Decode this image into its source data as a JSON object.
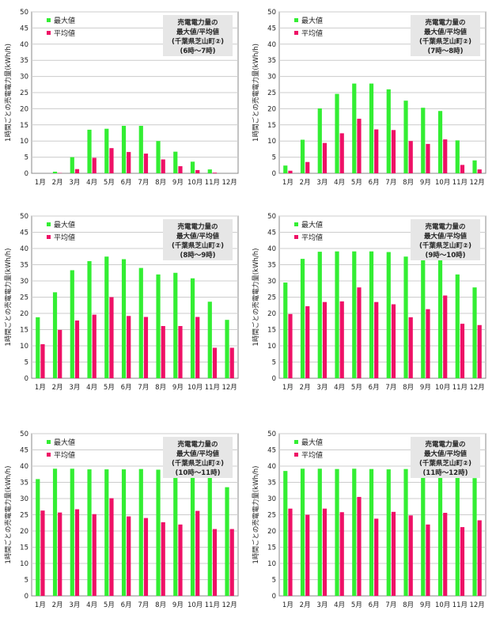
{
  "colors": {
    "max": "#33ee33",
    "avg": "#ee1166",
    "grid": "#cccccc",
    "axis": "#999999",
    "textbox_bg": "#e6e6e6"
  },
  "chart_data": [
    {
      "type": "bar",
      "categories": [
        "1月",
        "2月",
        "3月",
        "4月",
        "5月",
        "6月",
        "7月",
        "8月",
        "9月",
        "10月",
        "11月",
        "12月"
      ],
      "series": [
        {
          "name": "最大値",
          "values": [
            0,
            0.5,
            5,
            13.5,
            13.8,
            14.7,
            14.7,
            10,
            6.7,
            3.6,
            1.2,
            0
          ]
        },
        {
          "name": "平均値",
          "values": [
            0,
            0.1,
            1.3,
            4.8,
            7.8,
            6.6,
            6.1,
            4.3,
            2.2,
            1.0,
            0.2,
            0
          ]
        }
      ],
      "title_lines": [
        "売電電力量の",
        "最大値/平均値",
        "(千葉県芝山町②)",
        "(6時～7時)"
      ],
      "ylabel": "1時間ごとの売電電力量(kWh/h)",
      "ylim": [
        0,
        50
      ],
      "yticks": [
        0,
        5,
        10,
        15,
        20,
        25,
        30,
        35,
        40,
        45,
        50
      ],
      "grid": true,
      "legend": "top-left"
    },
    {
      "type": "bar",
      "categories": [
        "1月",
        "2月",
        "3月",
        "4月",
        "5月",
        "6月",
        "7月",
        "8月",
        "9月",
        "10月",
        "11月",
        "12月"
      ],
      "series": [
        {
          "name": "最大値",
          "values": [
            2.4,
            10.4,
            20.1,
            24.6,
            27.8,
            27.8,
            26,
            22.5,
            20.3,
            19.3,
            10.2,
            4
          ]
        },
        {
          "name": "平均値",
          "values": [
            0.8,
            3.5,
            9.4,
            12.4,
            16.9,
            13.6,
            13.4,
            10,
            9.1,
            10.5,
            2.6,
            1.2
          ]
        }
      ],
      "title_lines": [
        "売電電力量の",
        "最大値/平均値",
        "(千葉県芝山町②)",
        "(7時～8時)"
      ],
      "ylabel": "1時間ごとの売電電力量(kWh/h)",
      "ylim": [
        0,
        50
      ],
      "yticks": [
        0,
        5,
        10,
        15,
        20,
        25,
        30,
        35,
        40,
        45,
        50
      ],
      "grid": true,
      "legend": "top-left"
    },
    {
      "type": "bar",
      "categories": [
        "1月",
        "2月",
        "3月",
        "4月",
        "5月",
        "6月",
        "7月",
        "8月",
        "9月",
        "10月",
        "11月",
        "12月"
      ],
      "series": [
        {
          "name": "最大値",
          "values": [
            18.8,
            26.5,
            33.3,
            36.1,
            37.5,
            36.7,
            34,
            32,
            32.5,
            30.8,
            23.6,
            18
          ]
        },
        {
          "name": "平均値",
          "values": [
            10.5,
            14.9,
            17.8,
            19.6,
            25,
            19.2,
            18.9,
            16.1,
            16.1,
            18.9,
            9.4,
            9.4
          ]
        }
      ],
      "title_lines": [
        "売電電力量の",
        "最大値/平均値",
        "(千葉県芝山町②)",
        "(8時～9時)"
      ],
      "ylabel": "1時間ごとの売電電力量(kWh/h)",
      "ylim": [
        0,
        50
      ],
      "yticks": [
        0,
        5,
        10,
        15,
        20,
        25,
        30,
        35,
        40,
        45,
        50
      ],
      "grid": true,
      "legend": "top-left"
    },
    {
      "type": "bar",
      "categories": [
        "1月",
        "2月",
        "3月",
        "4月",
        "5月",
        "6月",
        "7月",
        "8月",
        "9月",
        "10月",
        "11月",
        "12月"
      ],
      "series": [
        {
          "name": "最大値",
          "values": [
            29.5,
            36.8,
            39,
            39.1,
            39.1,
            39.1,
            38.9,
            37.5,
            38.4,
            38,
            32,
            28
          ]
        },
        {
          "name": "平均値",
          "values": [
            19.8,
            22.2,
            23.5,
            23.7,
            28,
            23.5,
            22.8,
            18.8,
            21.3,
            25.5,
            16.8,
            16.4
          ]
        }
      ],
      "title_lines": [
        "売電電力量の",
        "最大値/平均値",
        "(千葉県芝山町②)",
        "(9時～10時)"
      ],
      "ylabel": "1時間ごとの売電電力量(kWh/h)",
      "ylim": [
        0,
        50
      ],
      "yticks": [
        0,
        5,
        10,
        15,
        20,
        25,
        30,
        35,
        40,
        45,
        50
      ],
      "grid": true,
      "legend": "top-left"
    },
    {
      "type": "bar",
      "categories": [
        "1月",
        "2月",
        "3月",
        "4月",
        "5月",
        "6月",
        "7月",
        "8月",
        "9月",
        "10月",
        "11月",
        "12月"
      ],
      "series": [
        {
          "name": "最大値",
          "values": [
            36,
            39.2,
            39.2,
            39,
            39,
            39,
            39.1,
            38.9,
            39.2,
            39.2,
            37,
            33.5
          ]
        },
        {
          "name": "平均値",
          "values": [
            26.3,
            25.7,
            26.7,
            25.2,
            30.1,
            24.5,
            24,
            22.7,
            22,
            26.2,
            20.6,
            20.6
          ]
        }
      ],
      "title_lines": [
        "売電電力量の",
        "最大値/平均値",
        "(千葉県芝山町②)",
        "(10時～11時)"
      ],
      "ylabel": "1時間ごとの売電電力量(kWh/h)",
      "ylim": [
        0,
        50
      ],
      "yticks": [
        0,
        5,
        10,
        15,
        20,
        25,
        30,
        35,
        40,
        45,
        50
      ],
      "grid": true,
      "legend": "top-left"
    },
    {
      "type": "bar",
      "categories": [
        "1月",
        "2月",
        "3月",
        "4月",
        "5月",
        "6月",
        "7月",
        "8月",
        "9月",
        "10月",
        "11月",
        "12月"
      ],
      "series": [
        {
          "name": "最大値",
          "values": [
            38.5,
            39.2,
            39.2,
            39.1,
            39.2,
            39.1,
            39,
            39.1,
            39.1,
            39.2,
            38.5,
            36.3
          ]
        },
        {
          "name": "平均値",
          "values": [
            26.9,
            25,
            26.9,
            25.8,
            30.5,
            23.8,
            25.9,
            24.8,
            22,
            25.6,
            21.2,
            23.3
          ]
        }
      ],
      "title_lines": [
        "売電電力量の",
        "最大値/平均値",
        "(千葉県芝山町②)",
        "(11時～12時)"
      ],
      "ylabel": "1時間ごとの売電電力量(kWh/h)",
      "ylim": [
        0,
        50
      ],
      "yticks": [
        0,
        5,
        10,
        15,
        20,
        25,
        30,
        35,
        40,
        45,
        50
      ],
      "grid": true,
      "legend": "top-left"
    }
  ]
}
